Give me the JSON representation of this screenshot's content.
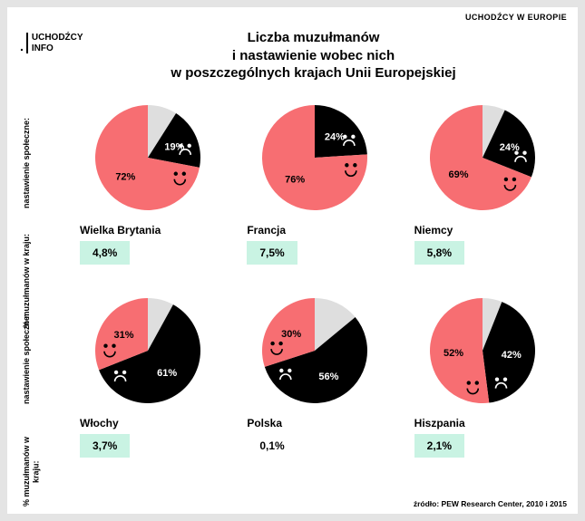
{
  "header": {
    "top_right": "UCHODŹCY W EUROPIE",
    "brand_line1": "UCHODŹCY",
    "brand_line2": "INFO",
    "title_l1": "Liczba muzułmanów",
    "title_l2": "i nastawienie wobec nich",
    "title_l3": "w poszczególnych krajach Unii Europejskiej"
  },
  "side_labels": {
    "attitude": "nastawienie społeczne:",
    "percent": "% muzułmanów w kraju:"
  },
  "palette": {
    "positive": "#f76e72",
    "negative": "#000000",
    "neutral": "#dedede",
    "metric_bg": "#c9f3e3",
    "metric_bg_plain": "#ffffff",
    "face_stroke_on_red": "#000000",
    "face_stroke_on_black": "#ffffff"
  },
  "pies": {
    "radius": 58,
    "face_offset_deg": 22,
    "label_offset_deg": 30,
    "label_radius": 32,
    "label_fontsize": 11,
    "label_fontweight": 700
  },
  "countries": [
    {
      "name": "Wielka Brytania",
      "positive": 72,
      "negative": 19,
      "metric": "4,8%",
      "highlight": true
    },
    {
      "name": "Francja",
      "positive": 76,
      "negative": 24,
      "metric": "7,5%",
      "highlight": true
    },
    {
      "name": "Niemcy",
      "positive": 69,
      "negative": 24,
      "metric": "5,8%",
      "highlight": true
    },
    {
      "name": "Włochy",
      "positive": 31,
      "negative": 61,
      "metric": "3,7%",
      "highlight": true
    },
    {
      "name": "Polska",
      "positive": 30,
      "negative": 56,
      "metric": "0,1%",
      "highlight": false
    },
    {
      "name": "Hiszpania",
      "positive": 52,
      "negative": 42,
      "metric": "2,1%",
      "highlight": true
    }
  ],
  "source": "źródło: PEW Research Center, 2010 i 2015"
}
